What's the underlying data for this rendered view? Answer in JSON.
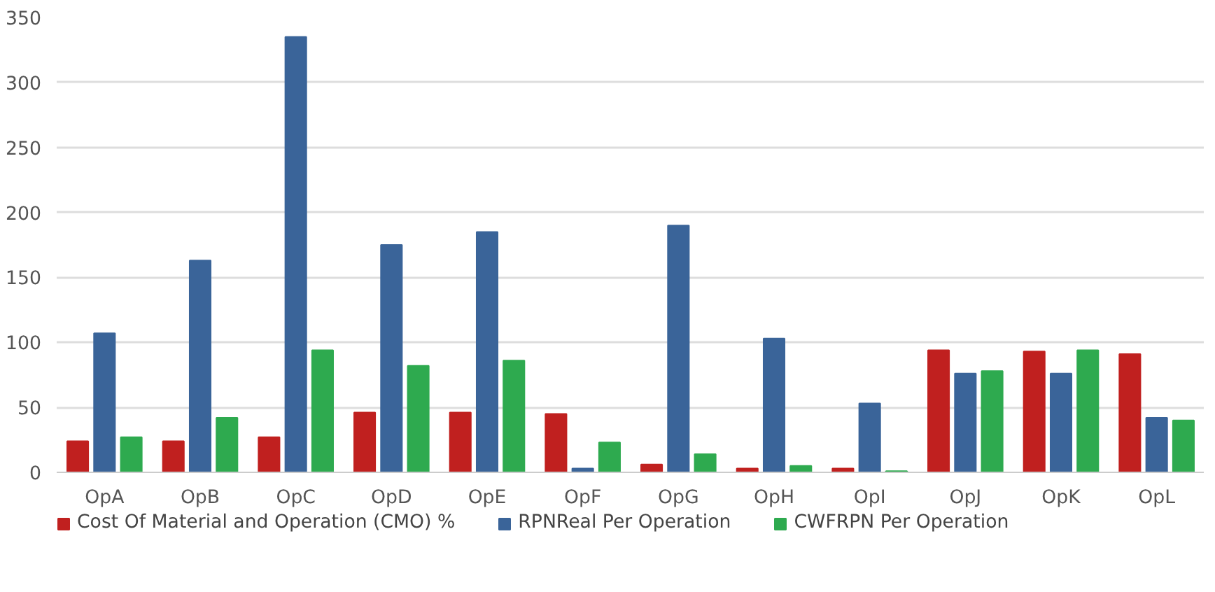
{
  "chart_data": {
    "type": "bar",
    "categories": [
      "OpA",
      "OpB",
      "OpC",
      "OpD",
      "OpE",
      "OpF",
      "OpG",
      "OpH",
      "OpI",
      "OpJ",
      "OpK",
      "OpL"
    ],
    "series": [
      {
        "name": "Cost Of Material and Operation (CMO) %",
        "color": "#c0201f",
        "values": [
          24,
          24,
          27,
          46,
          46,
          45,
          6,
          3,
          3,
          94,
          93,
          91
        ]
      },
      {
        "name": "RPNReal Per Operation",
        "color": "#3a6499",
        "values": [
          107,
          163,
          335,
          175,
          185,
          3,
          190,
          103,
          53,
          76,
          76,
          42
        ]
      },
      {
        "name": "CWFRPN Per Operation",
        "color": "#2eaa4f",
        "values": [
          27,
          42,
          94,
          82,
          86,
          23,
          14,
          5,
          1,
          78,
          94,
          40
        ]
      }
    ],
    "ylim": [
      0,
      350
    ],
    "yticks": [
      0,
      50,
      100,
      150,
      200,
      250,
      300,
      350
    ],
    "grid": "y",
    "legend": "bottom"
  }
}
